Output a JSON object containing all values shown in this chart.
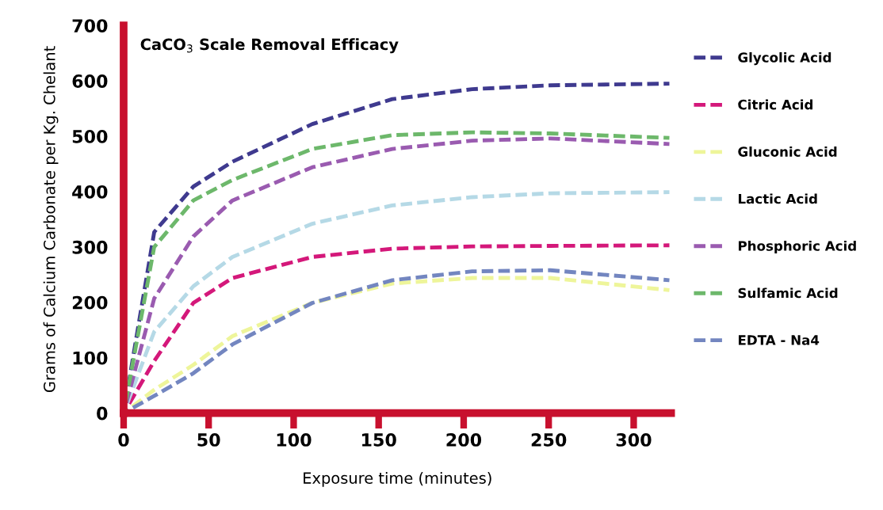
{
  "chart_data": {
    "type": "line",
    "title": "CaCO$_{3}$ Scale Removal Efficacy",
    "xlabel": "Exposure time (minutes)",
    "ylabel": "Grams of Calcium Carbonate per Kg. Chelant",
    "x": [
      0,
      18,
      41,
      64,
      111,
      158,
      205,
      251,
      321
    ],
    "series": [
      {
        "name": "Glycolic Acid",
        "color": "#3f3a8f",
        "values": [
          0,
          327,
          409,
          454,
          522,
          567,
          585,
          592,
          595
        ]
      },
      {
        "name": "Citric Acid",
        "color": "#d4187a",
        "values": [
          0,
          94,
          199,
          244,
          282,
          297,
          301,
          302,
          303
        ]
      },
      {
        "name": "Gluconic Acid",
        "color": "#eef59a",
        "values": [
          0,
          42,
          87,
          139,
          199,
          234,
          244,
          244,
          222
        ]
      },
      {
        "name": "Lactic Acid",
        "color": "#b5d9e6",
        "values": [
          0,
          147,
          229,
          282,
          342,
          375,
          390,
          397,
          399
        ]
      },
      {
        "name": "Phosphoric Acid",
        "color": "#9a5bb0",
        "values": [
          0,
          207,
          319,
          384,
          444,
          477,
          492,
          496,
          486
        ]
      },
      {
        "name": "Sulfamic Acid",
        "color": "#6db86b",
        "values": [
          0,
          300,
          384,
          421,
          477,
          502,
          507,
          505,
          497
        ]
      },
      {
        "name": "EDTA - Na4",
        "color": "#7386c0",
        "values": [
          0,
          31,
          72,
          124,
          199,
          240,
          256,
          258,
          240
        ]
      }
    ],
    "xlim": [
      0,
      322
    ],
    "ylim": [
      0,
      700
    ],
    "xticks": [
      0,
      50,
      100,
      150,
      200,
      250,
      300
    ],
    "yticks": [
      0,
      100,
      200,
      300,
      400,
      500,
      600,
      700
    ],
    "legend": "right",
    "line_style": "dashed",
    "grid": false
  }
}
